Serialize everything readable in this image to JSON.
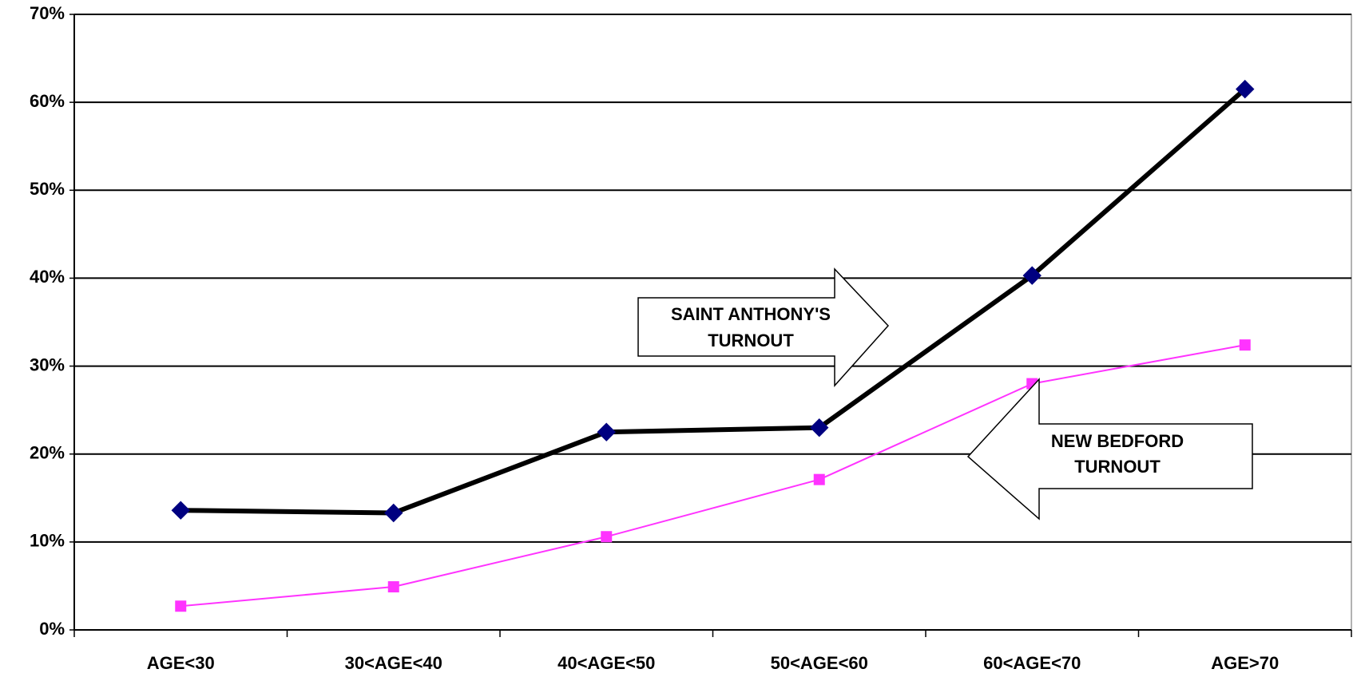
{
  "chart_data": {
    "type": "line",
    "categories": [
      "AGE<30",
      "30<AGE<40",
      "40<AGE<50",
      "50<AGE<60",
      "60<AGE<70",
      "AGE>70"
    ],
    "series": [
      {
        "name": "SAINT ANTHONY'S TURNOUT",
        "color": "#000080",
        "line_color": "#000000",
        "marker": "diamond",
        "values": [
          13.6,
          13.3,
          22.5,
          23.0,
          40.3,
          61.5
        ]
      },
      {
        "name": "NEW BEDFORD TURNOUT",
        "color": "#ff33ff",
        "line_color": "#ff33ff",
        "marker": "square",
        "values": [
          2.7,
          4.9,
          10.6,
          17.1,
          28.0,
          32.4
        ]
      }
    ],
    "ylim": [
      0,
      70
    ],
    "yticks": [
      {
        "value": 0,
        "label": "0%"
      },
      {
        "value": 10,
        "label": "10%"
      },
      {
        "value": 20,
        "label": "20%"
      },
      {
        "value": 30,
        "label": "30%"
      },
      {
        "value": 40,
        "label": "40%"
      },
      {
        "value": 50,
        "label": "50%"
      },
      {
        "value": 60,
        "label": "60%"
      },
      {
        "value": 70,
        "label": "70%"
      }
    ],
    "grid": true,
    "annotations": [
      {
        "lines": [
          "SAINT ANTHONY'S",
          "TURNOUT"
        ]
      },
      {
        "lines": [
          "NEW BEDFORD",
          "TURNOUT"
        ]
      }
    ]
  }
}
